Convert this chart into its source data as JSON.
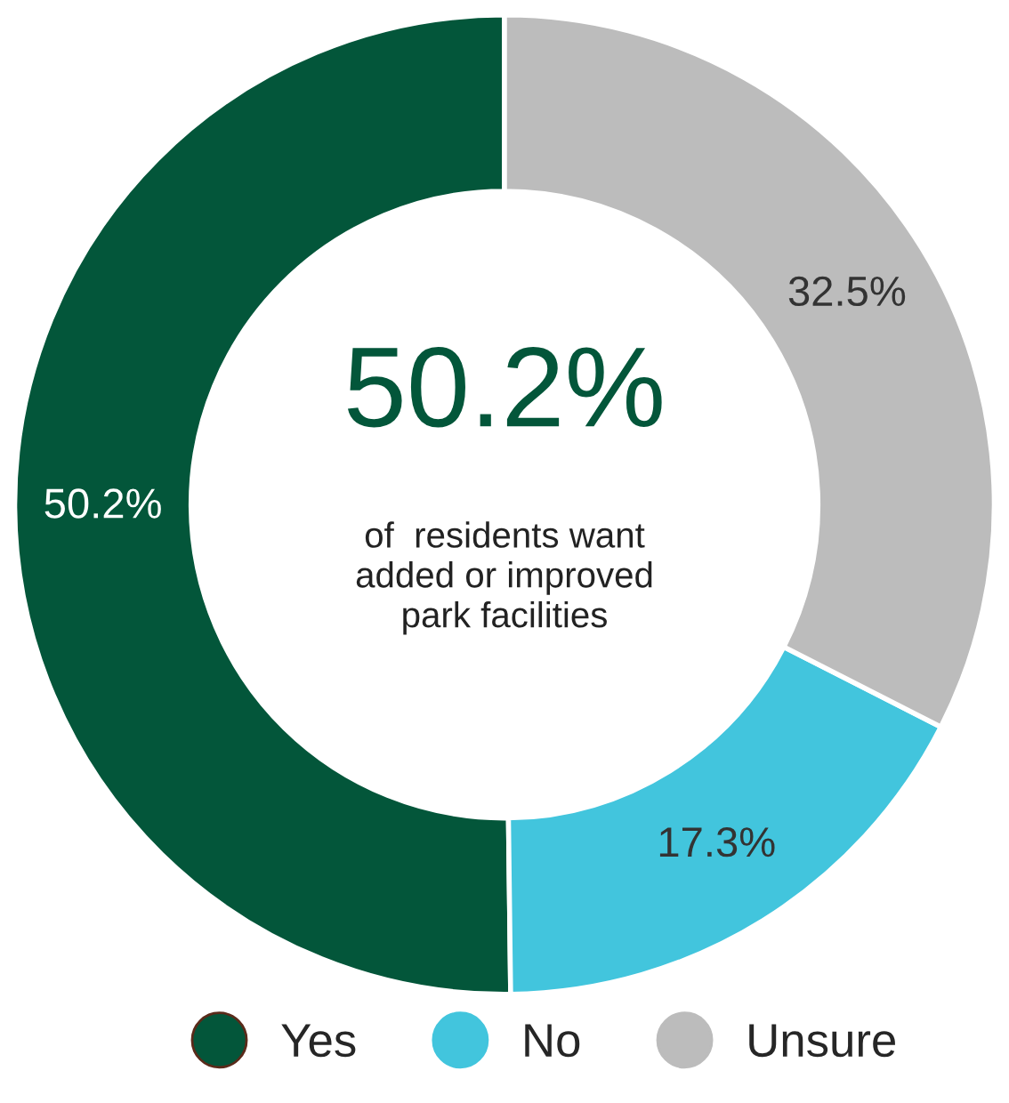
{
  "chart_data": {
    "type": "donut",
    "categories": [
      "Yes",
      "No",
      "Unsure"
    ],
    "values": [
      50.2,
      17.3,
      32.5
    ],
    "colors": [
      "#03563a",
      "#42c5dd",
      "#bcbcbc"
    ],
    "data_labels": true,
    "value_labels": [
      "50.2%",
      "17.3%",
      "32.5%"
    ],
    "annotations": [
      "50.2%",
      "of  residents want\nadded or improved\npark facilities"
    ],
    "legend": "bottom"
  }
}
